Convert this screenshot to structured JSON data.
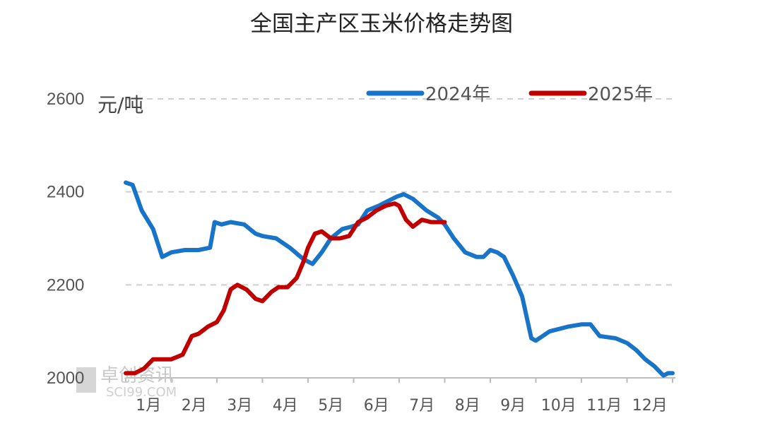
{
  "chart_data": {
    "type": "line",
    "title": "全国主产区玉米价格走势图",
    "ylabel": "元/吨",
    "ylim": [
      2000,
      2600
    ],
    "yticks": [
      2000,
      2200,
      2400,
      2600
    ],
    "xlim": [
      1,
      13
    ],
    "grid": true,
    "legend_position": "top-right",
    "categories": [
      "1月",
      "2月",
      "3月",
      "4月",
      "5月",
      "6月",
      "7月",
      "8月",
      "9月",
      "10月",
      "11月",
      "12月"
    ],
    "series": [
      {
        "name": "2024年",
        "color": "#1874c8",
        "x": [
          1.0,
          1.15,
          1.35,
          1.6,
          1.8,
          2.0,
          2.3,
          2.6,
          2.85,
          2.95,
          3.1,
          3.3,
          3.6,
          3.85,
          4.0,
          4.3,
          4.6,
          4.9,
          5.1,
          5.3,
          5.5,
          5.75,
          5.95,
          6.1,
          6.3,
          6.55,
          6.75,
          6.95,
          7.1,
          7.3,
          7.6,
          7.85,
          8.0,
          8.2,
          8.45,
          8.7,
          8.85,
          9.0,
          9.15,
          9.3,
          9.5,
          9.7,
          9.8,
          9.9,
          10.0,
          10.3,
          10.7,
          11.0,
          11.2,
          11.4,
          11.75,
          12.0,
          12.2,
          12.4,
          12.6,
          12.8,
          12.9,
          13.0
        ],
        "values": [
          2420,
          2415,
          2360,
          2320,
          2260,
          2270,
          2275,
          2275,
          2280,
          2335,
          2330,
          2335,
          2330,
          2310,
          2305,
          2300,
          2280,
          2255,
          2245,
          2270,
          2300,
          2320,
          2325,
          2330,
          2360,
          2370,
          2380,
          2390,
          2395,
          2385,
          2360,
          2345,
          2330,
          2300,
          2270,
          2260,
          2260,
          2275,
          2270,
          2260,
          2220,
          2175,
          2130,
          2085,
          2080,
          2100,
          2110,
          2115,
          2115,
          2090,
          2085,
          2075,
          2060,
          2040,
          2025,
          2005,
          2010,
          2010
        ]
      },
      {
        "name": "2025年",
        "color": "#c00000",
        "x": [
          1.0,
          1.2,
          1.4,
          1.6,
          1.8,
          2.0,
          2.25,
          2.45,
          2.6,
          2.8,
          3.0,
          3.15,
          3.3,
          3.45,
          3.65,
          3.85,
          4.0,
          4.2,
          4.35,
          4.55,
          4.75,
          4.9,
          5.0,
          5.15,
          5.3,
          5.5,
          5.7,
          5.9,
          6.1,
          6.3,
          6.5,
          6.7,
          6.9,
          7.0,
          7.15,
          7.3,
          7.5,
          7.7,
          7.85,
          8.0
        ],
        "values": [
          2010,
          2010,
          2020,
          2040,
          2040,
          2040,
          2050,
          2090,
          2095,
          2110,
          2120,
          2145,
          2190,
          2200,
          2190,
          2170,
          2165,
          2185,
          2195,
          2195,
          2215,
          2250,
          2280,
          2310,
          2315,
          2300,
          2300,
          2305,
          2335,
          2345,
          2360,
          2370,
          2375,
          2370,
          2340,
          2325,
          2340,
          2335,
          2335,
          2335
        ]
      }
    ]
  }
}
